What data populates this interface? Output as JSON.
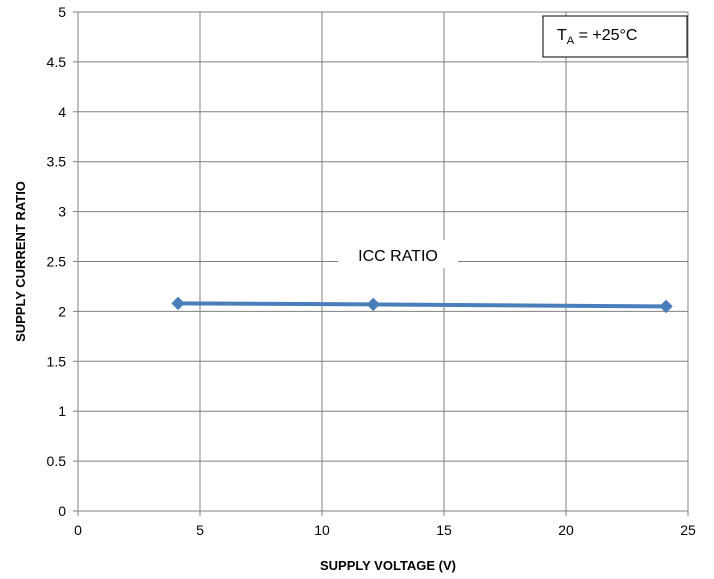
{
  "chart_data": {
    "type": "line",
    "xlabel": "SUPPLY VOLTAGE (V)",
    "ylabel": "SUPPLY CURRENT RATIO",
    "xlim": [
      0,
      25
    ],
    "ylim": [
      0,
      5
    ],
    "x_ticks": [
      0,
      5,
      10,
      15,
      20,
      25
    ],
    "y_ticks": [
      0,
      0.5,
      1,
      1.5,
      2,
      2.5,
      3,
      3.5,
      4,
      4.5,
      5
    ],
    "grid": true,
    "series": [
      {
        "name": "ICC RATIO",
        "color": "#4a7ebb",
        "marker": "diamond",
        "x": [
          4.1,
          12.1,
          24.1
        ],
        "y": [
          2.08,
          2.07,
          2.05
        ]
      }
    ],
    "annotation": {
      "prefix": "T",
      "subscript": "A",
      "suffix": " = +25°C"
    }
  }
}
